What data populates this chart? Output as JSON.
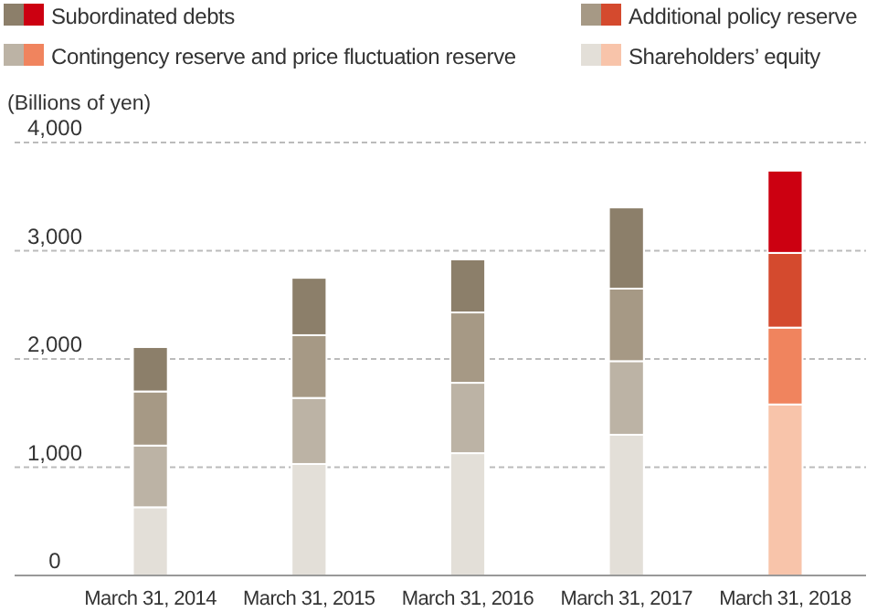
{
  "chart_data": {
    "type": "bar",
    "stacked": true,
    "ylabel": "(Billions of yen)",
    "categories": [
      "March 31, 2014",
      "March 31, 2015",
      "March 31, 2016",
      "March 31, 2017",
      "March 31, 2018"
    ],
    "series": [
      {
        "name": "Shareholders’ equity",
        "color": "#e3dfd8",
        "colors": [
          "#e3dfd8",
          "#e3dfd8",
          "#e3dfd8",
          "#e3dfd8",
          "#f8c4aa"
        ],
        "values": [
          630,
          1030,
          1130,
          1300,
          1580
        ]
      },
      {
        "name": "Contingency reserve and price fluctuation reserve",
        "color": "#bcb3a5",
        "colors": [
          "#bcb3a5",
          "#bcb3a5",
          "#bcb3a5",
          "#bcb3a5",
          "#f0845e"
        ],
        "values": [
          570,
          610,
          650,
          680,
          710
        ]
      },
      {
        "name": "Additional policy reserve",
        "color": "#a69985",
        "colors": [
          "#a69985",
          "#a69985",
          "#a69985",
          "#a69985",
          "#d44a2e"
        ],
        "values": [
          500,
          580,
          650,
          670,
          690
        ]
      },
      {
        "name": "Subordinated debts",
        "color": "#8c7f6a",
        "colors": [
          "#8c7f6a",
          "#8c7f6a",
          "#8c7f6a",
          "#8c7f6a",
          "#cc0011"
        ],
        "values": [
          410,
          530,
          490,
          750,
          760
        ]
      }
    ],
    "ylim": [
      0,
      4000
    ],
    "yticks": [
      0,
      {
        "value": 1000,
        "label": "1,000"
      },
      {
        "value": 2000,
        "label": "2,000"
      },
      {
        "value": 3000,
        "label": "3,000"
      },
      {
        "value": 4000,
        "label": "4,000"
      }
    ],
    "grid": "y",
    "legend": "top"
  }
}
